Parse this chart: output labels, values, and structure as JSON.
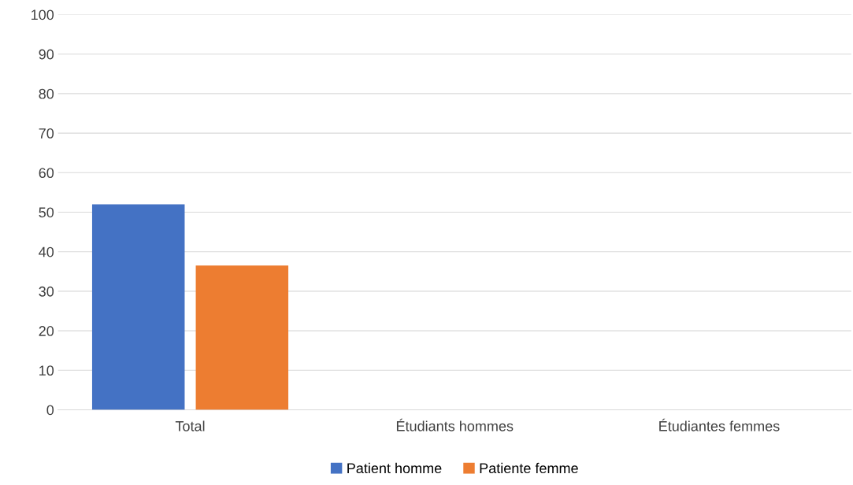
{
  "chart_data": {
    "type": "bar",
    "categories": [
      "Total",
      "Étudiants hommes",
      "Étudiantes femmes"
    ],
    "series": [
      {
        "name": "Patient homme",
        "color": "#4472c4",
        "values": [
          52,
          null,
          null
        ]
      },
      {
        "name": "Patiente femme",
        "color": "#ed7d31",
        "values": [
          36.5,
          null,
          null
        ]
      }
    ],
    "ylim": [
      0,
      100
    ],
    "yticks": [
      0,
      10,
      20,
      30,
      40,
      50,
      60,
      70,
      80,
      90,
      100
    ],
    "grid": "y",
    "legend": "bottom"
  }
}
